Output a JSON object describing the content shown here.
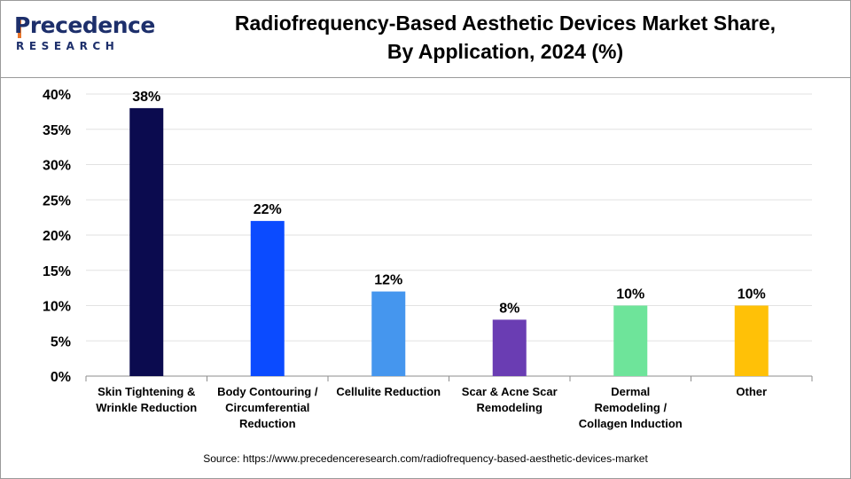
{
  "logo": {
    "name": "Precedence",
    "sub": "RESEARCH"
  },
  "title_line1": "Radiofrequency-Based Aesthetic Devices Market Share,",
  "title_line2": "By Application, 2024 (%)",
  "source": "Source: https://www.precedenceresearch.com/radiofrequency-based-aesthetic-devices-market",
  "chart_data": {
    "type": "bar",
    "title": "Radiofrequency-Based Aesthetic Devices Market Share, By Application, 2024 (%)",
    "categories": [
      [
        "Skin Tightening &",
        "Wrinkle Reduction"
      ],
      [
        "Body Contouring /",
        "Circumferential",
        "Reduction"
      ],
      [
        "Cellulite Reduction"
      ],
      [
        "Scar & Acne Scar",
        "Remodeling"
      ],
      [
        "Dermal",
        "Remodeling /",
        "Collagen Induction"
      ],
      [
        "Other"
      ]
    ],
    "values": [
      38,
      22,
      12,
      8,
      10,
      10
    ],
    "data_labels": [
      "38%",
      "22%",
      "12%",
      "8%",
      "10%",
      "10%"
    ],
    "colors": [
      "#0b0b4f",
      "#0b4bff",
      "#4596ee",
      "#6a3db3",
      "#6ee49a",
      "#ffc107"
    ],
    "ylim": [
      0,
      40
    ],
    "yticks": [
      0,
      5,
      10,
      15,
      20,
      25,
      30,
      35,
      40
    ],
    "ytick_labels": [
      "0%",
      "5%",
      "10%",
      "15%",
      "20%",
      "25%",
      "30%",
      "35%",
      "40%"
    ],
    "xlabel": "",
    "ylabel": "",
    "grid": true,
    "legend": "none"
  }
}
